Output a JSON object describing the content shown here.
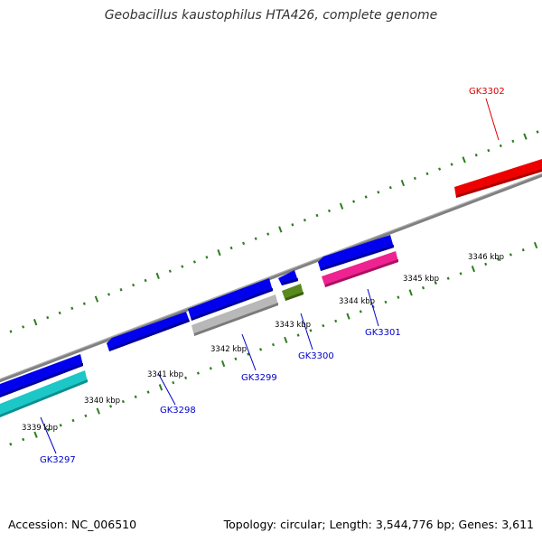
{
  "title": "Geobacillus kaustophilus HTA426, complete genome",
  "footer": {
    "accession": "Accession: NC_006510",
    "summary": "Topology: circular; Length: 3,544,776 bp; Genes: 3,611"
  },
  "colors": {
    "background": "#ffffff",
    "backbone": "#808080",
    "ticks": "#2e7d1e",
    "gene_blue": "#0000ee",
    "gene_cyan": "#1cc7c7",
    "gene_gray": "#b8b8b8",
    "gene_olive": "#5a8a1e",
    "gene_pink": "#ee2290",
    "gene_red": "#ee0000",
    "label_blue": "#0000cc",
    "label_red": "#dd0000"
  },
  "scale_labels": [
    "3339 kbp",
    "3340 kbp",
    "3341 kbp",
    "3342 kbp",
    "3343 kbp",
    "3344 kbp",
    "3345 kbp",
    "3346 kbp"
  ],
  "gene_labels": [
    {
      "id": "gk3297",
      "text": "GK3297",
      "color": "blue"
    },
    {
      "id": "gk3298",
      "text": "GK3298",
      "color": "blue"
    },
    {
      "id": "gk3299",
      "text": "GK3299",
      "color": "blue"
    },
    {
      "id": "gk3300",
      "text": "GK3300",
      "color": "blue"
    },
    {
      "id": "gk3301",
      "text": "GK3301",
      "color": "blue"
    },
    {
      "id": "gk3302",
      "text": "GK3302",
      "color": "red"
    }
  ]
}
